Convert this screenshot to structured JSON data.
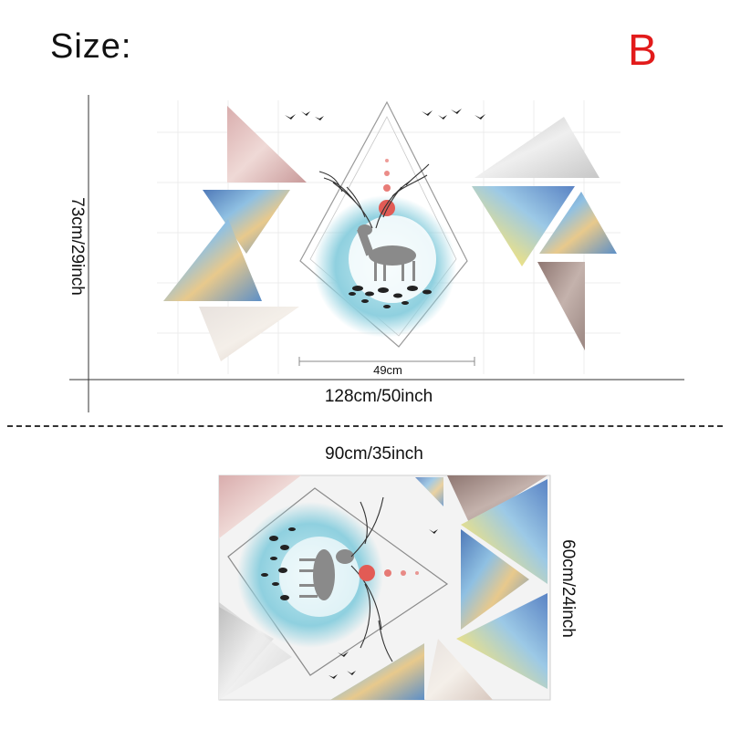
{
  "header": {
    "size_label": "Size:",
    "variant_letter": "B",
    "variant_color": "#e21b1b"
  },
  "layout_a": {
    "height_label": "73cm/29inch",
    "width_label": "128cm/50inch",
    "center_width_label": "49cm"
  },
  "layout_b": {
    "width_label": "90cm/35inch",
    "height_label": "60cm/24inch"
  },
  "palette": {
    "pink_marble": "#e6cbcb",
    "grey_marble": "#d9d9d9",
    "blue_poly": "#7aa3cf",
    "teal_wash": "#9fd3e0",
    "taupe": "#a8938e",
    "red_sun": "#e25b55",
    "gold_poly": "#e6c98a"
  }
}
